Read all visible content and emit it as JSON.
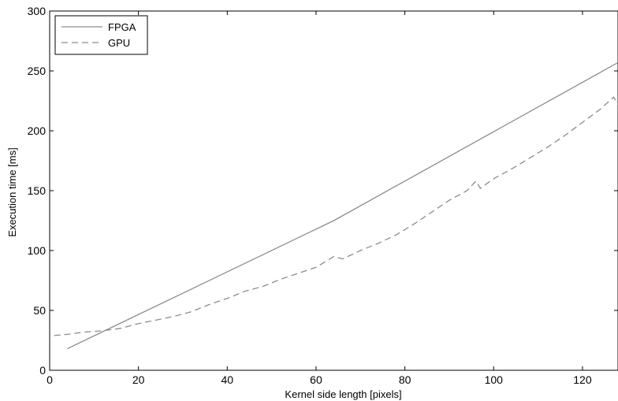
{
  "chart_data": {
    "type": "line",
    "title": "",
    "xlabel": "Kernel side length [pixels]",
    "ylabel": "Execution time [ms]",
    "xlim": [
      0,
      128
    ],
    "ylim": [
      0,
      300
    ],
    "xticks": [
      0,
      20,
      40,
      60,
      80,
      100,
      120
    ],
    "yticks": [
      0,
      50,
      100,
      150,
      200,
      250,
      300
    ],
    "grid": false,
    "legend_position": "top-left",
    "series": [
      {
        "name": "FPGA",
        "style": "solid",
        "color": "#8c8c8c",
        "x": [
          4,
          64,
          128
        ],
        "y": [
          18,
          125,
          257
        ]
      },
      {
        "name": "GPU",
        "style": "dashed",
        "color": "#8c8c8c",
        "x": [
          1,
          4,
          8,
          12,
          16,
          20,
          24,
          28,
          32,
          36,
          40,
          44,
          48,
          52,
          56,
          60,
          64,
          66,
          70,
          74,
          78,
          82,
          86,
          90,
          94,
          96,
          97,
          100,
          104,
          108,
          112,
          116,
          120,
          124,
          127,
          128
        ],
        "y": [
          29,
          30,
          32,
          33,
          35,
          39,
          42,
          45,
          49,
          55,
          60,
          66,
          70,
          76,
          81,
          86,
          95,
          93,
          100,
          106,
          113,
          122,
          132,
          142,
          150,
          158,
          152,
          160,
          168,
          177,
          186,
          196,
          207,
          218,
          228,
          222
        ]
      }
    ]
  }
}
